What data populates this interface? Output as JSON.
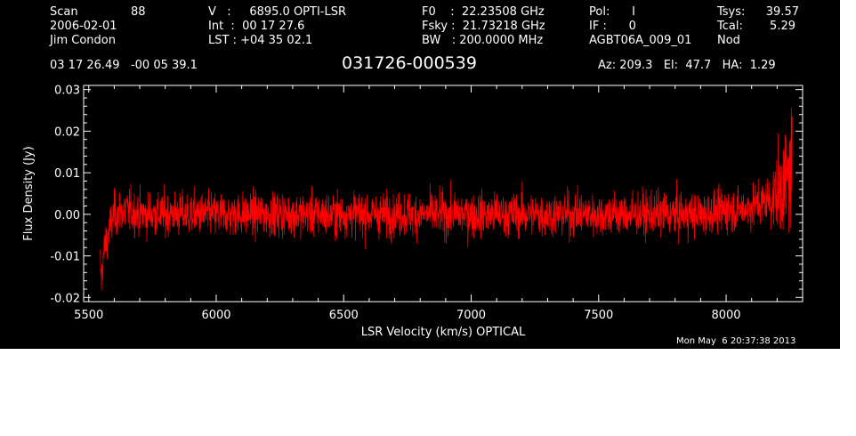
{
  "header": {
    "scan_label": "Scan",
    "scan_value": "88",
    "date": "2006-02-01",
    "observer": "Jim Condon",
    "velocity_line": "V   :     6895.0 OPTI-LSR",
    "int_line": "Int  :  00 17 27.6",
    "lst_line": "LST : +04 35 02.1",
    "f0_line": "F0    :  22.23508 GHz",
    "fsky_line": "Fsky :  21.73218 GHz",
    "bw_line": "BW   : 200.0000 MHz",
    "pol_line": "Pol:      I",
    "if_line": "IF :      0",
    "project": "AGBT06A_009_01",
    "tsys_label": "Tsys:",
    "tsys_value": "39.57",
    "tcal_label": "Tcal:",
    "tcal_value": "5.29",
    "mode": "Nod",
    "coords": "03 17 26.49   -00 05 39.1",
    "source": "031726-000539",
    "az_el_ha": "Az: 209.3   El:  47.7   HA:  1.29",
    "timestamp": "Mon May  6 20:37:38 2013"
  },
  "colors": {
    "background": "#000000",
    "foreground": "#ffffff",
    "series": "#ff0000"
  },
  "chart_data": {
    "type": "line",
    "xlabel": "LSR Velocity (km/s) OPTICAL",
    "ylabel": "Flux Density (Jy)",
    "xlim": [
      5480,
      8300
    ],
    "ylim": [
      -0.021,
      0.031
    ],
    "xticks": [
      5500,
      6000,
      6500,
      7000,
      7500,
      8000
    ],
    "xtick_labels": [
      "5500",
      "6000",
      "6500",
      "7000",
      "7500",
      "8000"
    ],
    "yticks": [
      -0.02,
      -0.01,
      0.0,
      0.01,
      0.02,
      0.03
    ],
    "ytick_labels": [
      "-0.02",
      "-0.01",
      "0.00",
      "0.01",
      "0.02",
      "0.03"
    ],
    "grid": false,
    "series": [
      {
        "x": [
          5545,
          5550,
          5555,
          5560,
          5570,
          5580,
          5590,
          5600,
          5650,
          5700,
          5800,
          5900,
          6000,
          6100,
          6200,
          6300,
          6400,
          6500,
          6600,
          6700,
          6800,
          6900,
          7000,
          7100,
          7200,
          7300,
          7400,
          7500,
          7600,
          7700,
          7800,
          7900,
          8000,
          8050,
          8100,
          8150,
          8180,
          8200,
          8220,
          8240,
          8250,
          8260
        ],
        "y": [
          -0.012,
          -0.016,
          -0.011,
          -0.009,
          -0.006,
          -0.004,
          -0.002,
          0.0,
          0.001,
          0.0,
          0.0,
          0.0,
          0.0,
          0.0,
          0.0,
          0.0,
          0.0,
          0.0,
          0.0,
          0.0,
          0.0,
          0.0,
          0.0,
          0.0,
          0.0,
          0.0,
          0.0,
          0.0,
          0.0,
          0.0,
          0.0,
          0.0,
          0.001,
          0.001,
          0.002,
          0.003,
          0.004,
          0.005,
          0.006,
          0.008,
          0.01,
          0.013
        ],
        "noise_rms": 0.0035
      }
    ]
  }
}
